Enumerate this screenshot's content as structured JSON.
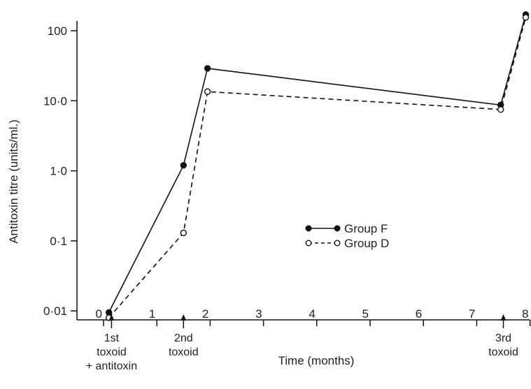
{
  "chart_data": {
    "type": "line",
    "xlabel": "Time (months)",
    "ylabel": "Antitoxin titre (units/ml.)",
    "x_scale": "linear",
    "y_scale": "log",
    "xlim": [
      0,
      8
    ],
    "ylim": [
      0.008,
      180
    ],
    "x_ticks": [
      "0",
      "1",
      "2",
      "3",
      "4",
      "5",
      "6",
      "7",
      "8"
    ],
    "y_ticks": [
      "0·01",
      "0·1",
      "1·0",
      "10·0",
      "100"
    ],
    "grid": false,
    "legend_position": "center-right",
    "series": [
      {
        "name": "Group F",
        "style": "solid",
        "marker": "filled-circle",
        "x": [
          0.1,
          1.5,
          1.95,
          7.45,
          7.92
        ],
        "y": [
          0.0095,
          1.2,
          29,
          8.7,
          170
        ]
      },
      {
        "name": "Group D",
        "style": "dashed",
        "marker": "open-circle",
        "x": [
          0.1,
          1.5,
          1.95,
          7.45,
          7.92
        ],
        "y": [
          0.008,
          0.13,
          13.5,
          7.5,
          155
        ]
      }
    ],
    "annotations": [
      {
        "x": 0.15,
        "lines": [
          "1st",
          "toxoid",
          "+ antitoxin"
        ]
      },
      {
        "x": 1.5,
        "lines": [
          "2nd",
          "toxoid"
        ]
      },
      {
        "x": 7.5,
        "lines": [
          "3rd",
          "toxoid"
        ]
      }
    ],
    "colors": {
      "ink": "#111111",
      "background": "#ffffff"
    }
  }
}
